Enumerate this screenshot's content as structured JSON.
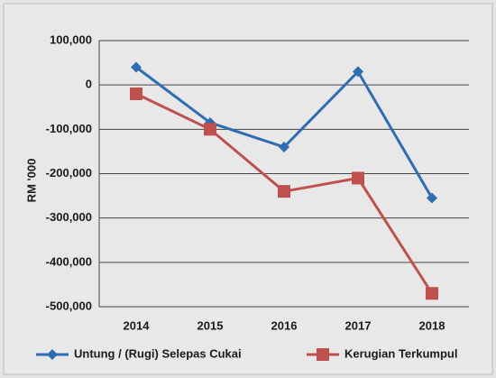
{
  "chart_data": {
    "type": "line",
    "y_label": "RM '000",
    "categories": [
      "2014",
      "2015",
      "2016",
      "2017",
      "2018"
    ],
    "series": [
      {
        "name": "Untung / (Rugi) Selepas Cukai",
        "color": "#2e6db4",
        "marker": "diamond",
        "values": [
          40000,
          -85000,
          -140000,
          30000,
          -255000
        ]
      },
      {
        "name": "Kerugian Terkumpul",
        "color": "#c0504d",
        "marker": "square",
        "values": [
          -20000,
          -100000,
          -240000,
          -210000,
          -470000
        ]
      }
    ],
    "ylim": [
      -500000,
      100000
    ],
    "yticks": [
      {
        "value": -500000,
        "label": "-500,000"
      },
      {
        "value": -400000,
        "label": "-400,000"
      },
      {
        "value": -300000,
        "label": "-300,000"
      },
      {
        "value": -200000,
        "label": "-200,000"
      },
      {
        "value": -100000,
        "label": "-100,000"
      },
      0,
      {
        "value": 100000,
        "label": "100,000"
      }
    ],
    "grid": true,
    "legend": "bottom"
  }
}
